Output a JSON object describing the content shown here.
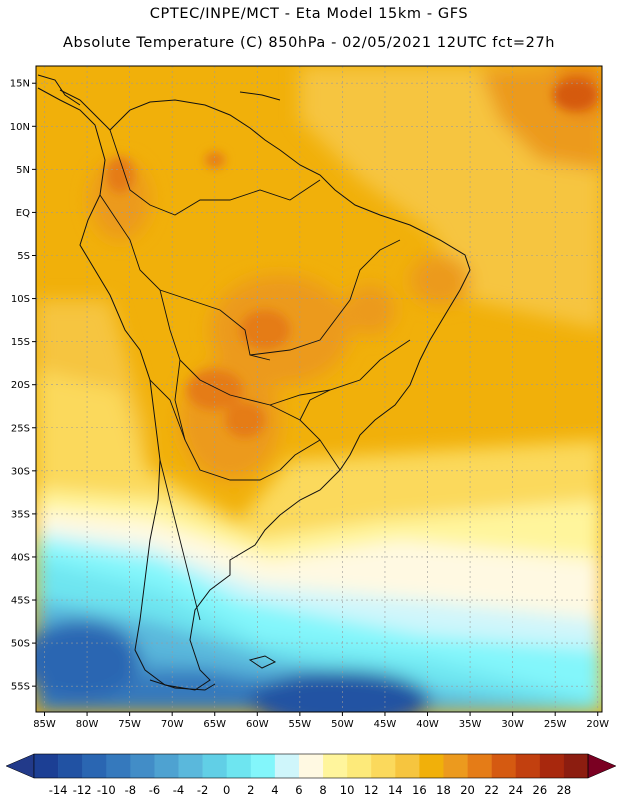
{
  "header": {
    "line1": "CPTEC/INPE/MCT -   Eta Model 15km - GFS",
    "line2": "Absolute Temperature (C) 850hPa - 02/05/2021 12UTC fct=27h"
  },
  "map": {
    "lat_range": [
      -58,
      17
    ],
    "lon_range": [
      -86,
      -19.5
    ],
    "lat_labels": [
      {
        "lat": 15,
        "text": "15N"
      },
      {
        "lat": 10,
        "text": "10N"
      },
      {
        "lat": 5,
        "text": "5N"
      },
      {
        "lat": 0,
        "text": "EQ"
      },
      {
        "lat": -5,
        "text": "5S"
      },
      {
        "lat": -10,
        "text": "10S"
      },
      {
        "lat": -15,
        "text": "15S"
      },
      {
        "lat": -20,
        "text": "20S"
      },
      {
        "lat": -25,
        "text": "25S"
      },
      {
        "lat": -30,
        "text": "30S"
      },
      {
        "lat": -35,
        "text": "35S"
      },
      {
        "lat": -40,
        "text": "40S"
      },
      {
        "lat": -45,
        "text": "45S"
      },
      {
        "lat": -50,
        "text": "50S"
      },
      {
        "lat": -55,
        "text": "55S"
      }
    ],
    "lon_labels": [
      {
        "lon": -85,
        "text": "85W"
      },
      {
        "lon": -80,
        "text": "80W"
      },
      {
        "lon": -75,
        "text": "75W"
      },
      {
        "lon": -70,
        "text": "70W"
      },
      {
        "lon": -65,
        "text": "65W"
      },
      {
        "lon": -60,
        "text": "60W"
      },
      {
        "lon": -55,
        "text": "55W"
      },
      {
        "lon": -50,
        "text": "50W"
      },
      {
        "lon": -45,
        "text": "45W"
      },
      {
        "lon": -40,
        "text": "40W"
      },
      {
        "lon": -35,
        "text": "35W"
      },
      {
        "lon": -30,
        "text": "30W"
      },
      {
        "lon": -25,
        "text": "25W"
      },
      {
        "lon": -20,
        "text": "20W"
      }
    ]
  },
  "colorbar": {
    "ticks": [
      "-14",
      "-12",
      "-10",
      "-8",
      "-6",
      "-4",
      "-2",
      "0",
      "2",
      "4",
      "6",
      "8",
      "10",
      "12",
      "14",
      "16",
      "18",
      "20",
      "22",
      "24",
      "26",
      "28"
    ],
    "low_color": "#223a8a",
    "high_color": "#7a0022",
    "colors": [
      "#1c3f94",
      "#2152a3",
      "#2a66b2",
      "#3579bd",
      "#428dc7",
      "#4ea2d1",
      "#5ab8dc",
      "#61cfe6",
      "#6ee5f0",
      "#83f6fb",
      "#cff6fb",
      "#fff9e2",
      "#fff59c",
      "#fdea7a",
      "#fbd95c",
      "#f6c53f",
      "#f1b00a",
      "#ec9a1e",
      "#e57c17",
      "#d55a11",
      "#c2400f",
      "#a8280d",
      "#8c1d10"
    ]
  }
}
